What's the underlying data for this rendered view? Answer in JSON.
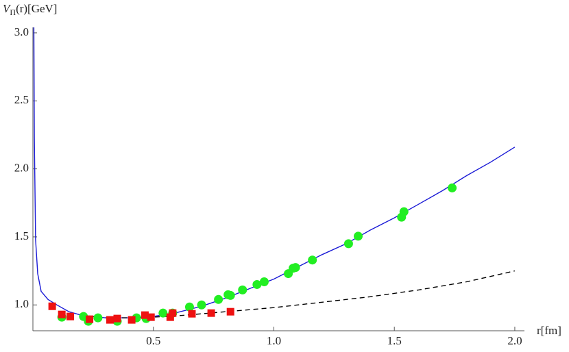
{
  "chart_data": {
    "type": "scatter",
    "ylabel": [
      "V",
      "Π",
      "(r)[GeV]"
    ],
    "xlabel": "r[fm]",
    "xlim": [
      0,
      2.04
    ],
    "ylim": [
      0.81,
      3.04
    ],
    "xticks": [
      0.5,
      {
        "value": 1.0,
        "label": "1.0"
      },
      1.5,
      {
        "value": 2.0,
        "label": "2.0"
      }
    ],
    "yticks": [
      {
        "value": 1.0,
        "label": "1.0"
      },
      1.5,
      {
        "value": 2.0,
        "label": "2.0"
      },
      2.5,
      {
        "value": 3.0,
        "label": "3.0"
      }
    ],
    "series": [
      {
        "mark": "line",
        "dash": false,
        "color": "#1a1ad6",
        "x": [
          0.004,
          0.006,
          0.011,
          0.02,
          0.034,
          0.063,
          0.1,
          0.15,
          0.2,
          0.3,
          0.4,
          0.5,
          0.6,
          0.7,
          0.8,
          0.9,
          1.0,
          1.1,
          1.2,
          1.3,
          1.4,
          1.5,
          1.6,
          1.7,
          1.8,
          1.9,
          2.0
        ],
        "values": [
          3.04,
          2.23,
          1.48,
          1.23,
          1.1,
          1.04,
          1.0,
          0.95,
          0.925,
          0.905,
          0.905,
          0.915,
          0.945,
          0.99,
          1.05,
          1.12,
          1.19,
          1.28,
          1.37,
          1.45,
          1.55,
          1.64,
          1.74,
          1.84,
          1.95,
          2.05,
          2.16
        ]
      },
      {
        "mark": "line",
        "dash": true,
        "color": "#000000",
        "x": [
          0.2,
          0.3,
          0.4,
          0.5,
          0.6,
          0.7,
          0.8,
          0.9,
          1.0,
          1.2,
          1.4,
          1.6,
          1.8,
          2.0
        ],
        "values": [
          0.925,
          0.905,
          0.905,
          0.91,
          0.92,
          0.935,
          0.95,
          0.965,
          0.98,
          1.02,
          1.06,
          1.11,
          1.17,
          1.25
        ]
      },
      {
        "mark": "circle",
        "color": "#22ee22",
        "x": [
          0.12,
          0.21,
          0.23,
          0.27,
          0.35,
          0.43,
          0.47,
          0.54,
          0.58,
          0.65,
          0.7,
          0.77,
          0.81,
          0.82,
          0.87,
          0.93,
          0.96,
          1.06,
          1.08,
          1.09,
          1.16,
          1.31,
          1.35,
          1.53,
          1.54,
          1.74
        ],
        "values": [
          0.91,
          0.915,
          0.88,
          0.905,
          0.88,
          0.905,
          0.9,
          0.94,
          0.94,
          0.985,
          1.0,
          1.04,
          1.075,
          1.07,
          1.11,
          1.15,
          1.17,
          1.23,
          1.27,
          1.275,
          1.33,
          1.45,
          1.505,
          1.645,
          1.685,
          1.86
        ]
      },
      {
        "mark": "square",
        "color": "#ee1111",
        "x": [
          0.08,
          0.12,
          0.155,
          0.235,
          0.32,
          0.35,
          0.41,
          0.465,
          0.49,
          0.57,
          0.58,
          0.66,
          0.74,
          0.82
        ],
        "values": [
          0.99,
          0.93,
          0.915,
          0.895,
          0.89,
          0.9,
          0.89,
          0.925,
          0.91,
          0.91,
          0.94,
          0.935,
          0.94,
          0.95
        ]
      }
    ]
  }
}
